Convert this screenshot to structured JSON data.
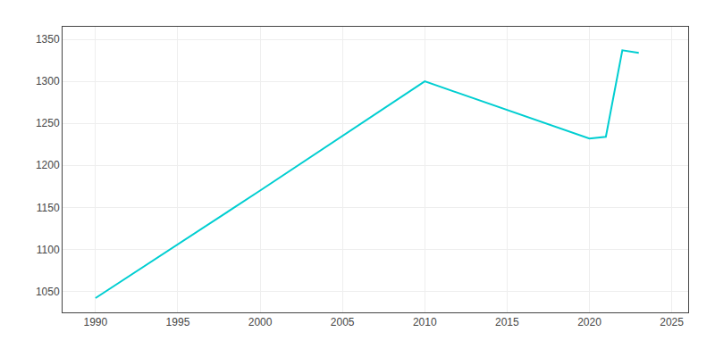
{
  "chart_data": {
    "type": "line",
    "x": [
      1990,
      2000,
      2010,
      2020,
      2021,
      2022,
      2023
    ],
    "values": [
      1042,
      1170,
      1300,
      1232,
      1234,
      1337,
      1334
    ],
    "color": "#00CED1",
    "xlim": [
      1988,
      2026
    ],
    "ylim": [
      1025,
      1365
    ],
    "xticks": [
      1990,
      1995,
      2000,
      2005,
      2010,
      2015,
      2020,
      2025
    ],
    "yticks": [
      1050,
      1100,
      1150,
      1200,
      1250,
      1300,
      1350
    ],
    "grid": true
  }
}
